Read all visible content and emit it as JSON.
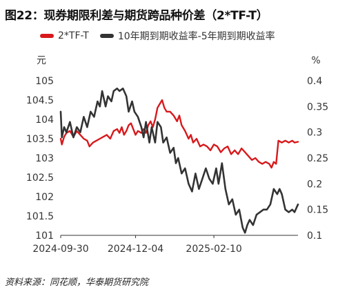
{
  "title": "图22：现券期限利差与期货跨品种价差（2*TF-T）",
  "source": "资料来源：同花顺，华泰期货研究院",
  "colors": {
    "series1": "#d7191c",
    "series2": "#333333",
    "axis": "#333333"
  },
  "chart_data": {
    "type": "line",
    "left_unit": "元",
    "right_unit": "%",
    "left_ylim": [
      101,
      105
    ],
    "left_ticks": [
      "101",
      "101.5",
      "102",
      "102.5",
      "103",
      "103.5",
      "104",
      "104.5",
      "105"
    ],
    "right_ylim": [
      0.1,
      0.4
    ],
    "right_ticks": [
      "0.1",
      "0.15",
      "0.2",
      "0.25",
      "0.3",
      "0.35",
      "0.4"
    ],
    "x_ticks": [
      "2024-09-30",
      "2024-12-04",
      "2025-02-10"
    ],
    "x_range": [
      "2024-09-30",
      "2025-04-24"
    ],
    "series": [
      {
        "name": "2*TF-T",
        "axis": "left",
        "values": [
          [
            "2024-09-30",
            103.5
          ],
          [
            "2024-10-01",
            103.35
          ],
          [
            "2024-10-03",
            103.55
          ],
          [
            "2024-10-05",
            103.65
          ],
          [
            "2024-10-08",
            103.7
          ],
          [
            "2024-10-11",
            103.55
          ],
          [
            "2024-10-14",
            103.7
          ],
          [
            "2024-10-17",
            103.6
          ],
          [
            "2024-10-20",
            103.5
          ],
          [
            "2024-10-23",
            103.45
          ],
          [
            "2024-10-25",
            103.3
          ],
          [
            "2024-10-28",
            103.4
          ],
          [
            "2024-10-31",
            103.45
          ],
          [
            "2024-11-03",
            103.5
          ],
          [
            "2024-11-06",
            103.55
          ],
          [
            "2024-11-09",
            103.6
          ],
          [
            "2024-11-12",
            103.5
          ],
          [
            "2024-11-15",
            103.7
          ],
          [
            "2024-11-18",
            103.75
          ],
          [
            "2024-11-20",
            103.65
          ],
          [
            "2024-11-22",
            103.8
          ],
          [
            "2024-11-24",
            103.6
          ],
          [
            "2024-11-26",
            103.7
          ],
          [
            "2024-11-28",
            103.85
          ],
          [
            "2024-11-30",
            103.9
          ],
          [
            "2024-12-02",
            103.75
          ],
          [
            "2024-12-04",
            103.6
          ],
          [
            "2024-12-06",
            103.7
          ],
          [
            "2024-12-09",
            103.65
          ],
          [
            "2024-12-11",
            103.75
          ],
          [
            "2024-12-13",
            103.65
          ],
          [
            "2024-12-15",
            103.85
          ],
          [
            "2024-12-17",
            103.95
          ],
          [
            "2024-12-19",
            103.8
          ],
          [
            "2024-12-21",
            104.0
          ],
          [
            "2024-12-23",
            104.3
          ],
          [
            "2024-12-25",
            104.4
          ],
          [
            "2024-12-27",
            104.5
          ],
          [
            "2024-12-29",
            104.3
          ],
          [
            "2024-12-31",
            104.2
          ],
          [
            "2025-01-03",
            104.2
          ],
          [
            "2025-01-06",
            104.1
          ],
          [
            "2025-01-09",
            103.95
          ],
          [
            "2025-01-11",
            104.1
          ],
          [
            "2025-01-13",
            103.85
          ],
          [
            "2025-01-16",
            103.7
          ],
          [
            "2025-01-19",
            103.5
          ],
          [
            "2025-01-21",
            103.6
          ],
          [
            "2025-01-23",
            103.4
          ],
          [
            "2025-01-26",
            103.5
          ],
          [
            "2025-01-29",
            103.3
          ],
          [
            "2025-02-01",
            103.35
          ],
          [
            "2025-02-04",
            103.3
          ],
          [
            "2025-02-07",
            103.2
          ],
          [
            "2025-02-10",
            103.35
          ],
          [
            "2025-02-13",
            103.3
          ],
          [
            "2025-02-16",
            103.15
          ],
          [
            "2025-02-19",
            103.25
          ],
          [
            "2025-02-22",
            103.3
          ],
          [
            "2025-02-25",
            103.1
          ],
          [
            "2025-02-28",
            103.2
          ],
          [
            "2025-03-03",
            103.1
          ],
          [
            "2025-03-06",
            103.25
          ],
          [
            "2025-03-09",
            103.15
          ],
          [
            "2025-03-12",
            103.05
          ],
          [
            "2025-03-15",
            102.95
          ],
          [
            "2025-03-18",
            103.0
          ],
          [
            "2025-03-21",
            102.9
          ],
          [
            "2025-03-24",
            102.85
          ],
          [
            "2025-03-27",
            102.9
          ],
          [
            "2025-03-30",
            102.85
          ],
          [
            "2025-04-01",
            102.75
          ],
          [
            "2025-04-03",
            102.9
          ],
          [
            "2025-04-05",
            102.85
          ],
          [
            "2025-04-07",
            103.45
          ],
          [
            "2025-04-10",
            103.4
          ],
          [
            "2025-04-13",
            103.45
          ],
          [
            "2025-04-16",
            103.4
          ],
          [
            "2025-04-19",
            103.45
          ],
          [
            "2025-04-21",
            103.4
          ],
          [
            "2025-04-24",
            103.42
          ]
        ]
      },
      {
        "name": "10年期到期收益率-5年期到期收益率",
        "axis": "right",
        "values": [
          [
            "2024-09-30",
            0.34
          ],
          [
            "2024-10-01",
            0.29
          ],
          [
            "2024-10-03",
            0.31
          ],
          [
            "2024-10-05",
            0.3
          ],
          [
            "2024-10-08",
            0.32
          ],
          [
            "2024-10-11",
            0.29
          ],
          [
            "2024-10-14",
            0.31
          ],
          [
            "2024-10-17",
            0.3
          ],
          [
            "2024-10-20",
            0.33
          ],
          [
            "2024-10-23",
            0.31
          ],
          [
            "2024-10-26",
            0.34
          ],
          [
            "2024-10-29",
            0.33
          ],
          [
            "2024-11-01",
            0.36
          ],
          [
            "2024-11-03",
            0.35
          ],
          [
            "2024-11-05",
            0.38
          ],
          [
            "2024-11-08",
            0.35
          ],
          [
            "2024-11-10",
            0.37
          ],
          [
            "2024-11-13",
            0.36
          ],
          [
            "2024-11-15",
            0.38
          ],
          [
            "2024-11-18",
            0.385
          ],
          [
            "2024-11-20",
            0.38
          ],
          [
            "2024-11-23",
            0.385
          ],
          [
            "2024-11-26",
            0.37
          ],
          [
            "2024-11-28",
            0.34
          ],
          [
            "2024-12-01",
            0.36
          ],
          [
            "2024-12-03",
            0.34
          ],
          [
            "2024-12-06",
            0.33
          ],
          [
            "2024-12-09",
            0.31
          ],
          [
            "2024-12-11",
            0.29
          ],
          [
            "2024-12-13",
            0.32
          ],
          [
            "2024-12-16",
            0.28
          ],
          [
            "2024-12-18",
            0.31
          ],
          [
            "2024-12-21",
            0.28
          ],
          [
            "2024-12-23",
            0.32
          ],
          [
            "2024-12-26",
            0.31
          ],
          [
            "2024-12-28",
            0.28
          ],
          [
            "2024-12-31",
            0.29
          ],
          [
            "2025-01-03",
            0.26
          ],
          [
            "2025-01-06",
            0.27
          ],
          [
            "2025-01-08",
            0.24
          ],
          [
            "2025-01-10",
            0.25
          ],
          [
            "2025-01-13",
            0.22
          ],
          [
            "2025-01-16",
            0.23
          ],
          [
            "2025-01-19",
            0.2
          ],
          [
            "2025-01-22",
            0.185
          ],
          [
            "2025-01-25",
            0.22
          ],
          [
            "2025-01-28",
            0.19
          ],
          [
            "2025-01-31",
            0.21
          ],
          [
            "2025-02-03",
            0.23
          ],
          [
            "2025-02-06",
            0.21
          ],
          [
            "2025-02-09",
            0.2
          ],
          [
            "2025-02-12",
            0.23
          ],
          [
            "2025-02-14",
            0.2
          ],
          [
            "2025-02-17",
            0.24
          ],
          [
            "2025-02-20",
            0.19
          ],
          [
            "2025-02-23",
            0.16
          ],
          [
            "2025-02-26",
            0.17
          ],
          [
            "2025-03-01",
            0.14
          ],
          [
            "2025-03-04",
            0.15
          ],
          [
            "2025-03-07",
            0.115
          ],
          [
            "2025-03-09",
            0.105
          ],
          [
            "2025-03-11",
            0.12
          ],
          [
            "2025-03-13",
            0.13
          ],
          [
            "2025-03-16",
            0.12
          ],
          [
            "2025-03-19",
            0.14
          ],
          [
            "2025-03-22",
            0.145
          ],
          [
            "2025-03-25",
            0.15
          ],
          [
            "2025-03-28",
            0.15
          ],
          [
            "2025-03-31",
            0.16
          ],
          [
            "2025-04-03",
            0.19
          ],
          [
            "2025-04-06",
            0.18
          ],
          [
            "2025-04-08",
            0.19
          ],
          [
            "2025-04-10",
            0.18
          ],
          [
            "2025-04-13",
            0.15
          ],
          [
            "2025-04-16",
            0.145
          ],
          [
            "2025-04-19",
            0.15
          ],
          [
            "2025-04-21",
            0.145
          ],
          [
            "2025-04-24",
            0.16
          ]
        ]
      }
    ]
  }
}
